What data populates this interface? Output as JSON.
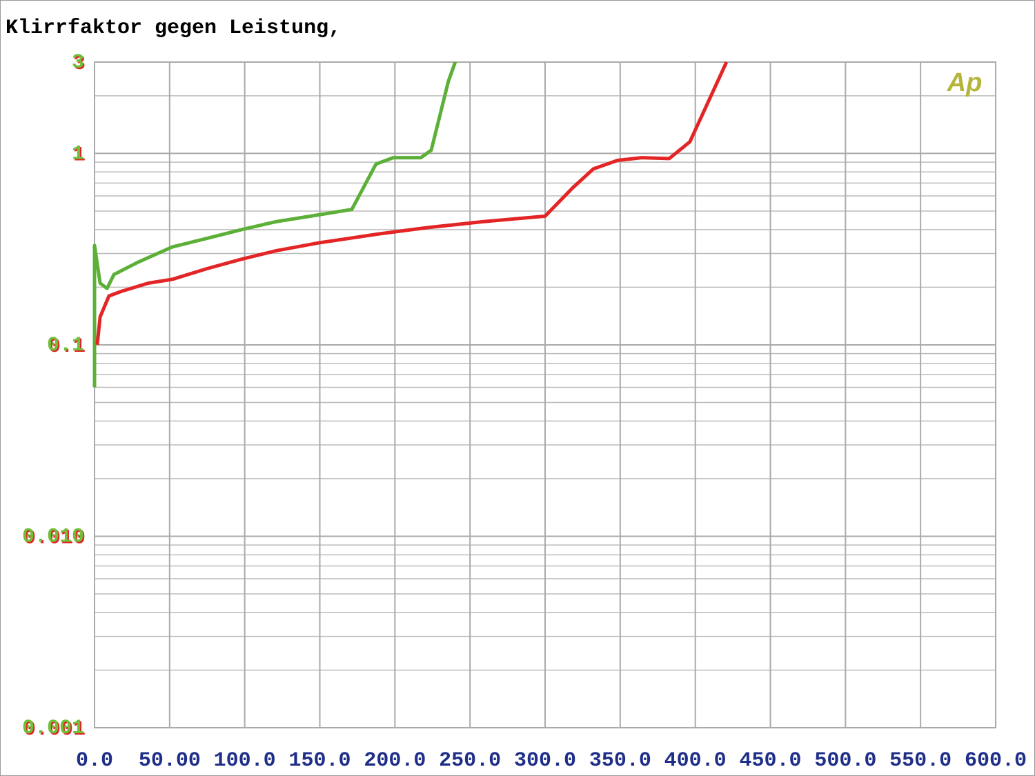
{
  "chart_data": {
    "type": "line",
    "title": "Klirrfaktor gegen Leistung,",
    "annotation": "Ap",
    "log_y": true,
    "grid": true,
    "xlim": [
      0,
      600
    ],
    "ylim": [
      0.001,
      3
    ],
    "xticks": [
      {
        "value": 0,
        "label": "0.0"
      },
      {
        "value": 50,
        "label": "50.00"
      },
      {
        "value": 100,
        "label": "100.0"
      },
      {
        "value": 150,
        "label": "150.0"
      },
      {
        "value": 200,
        "label": "200.0"
      },
      {
        "value": 250,
        "label": "250.0"
      },
      {
        "value": 300,
        "label": "300.0"
      },
      {
        "value": 350,
        "label": "350.0"
      },
      {
        "value": 400,
        "label": "400.0"
      },
      {
        "value": 450,
        "label": "450.0"
      },
      {
        "value": 500,
        "label": "500.0"
      },
      {
        "value": 550,
        "label": "550.0"
      },
      {
        "value": 600,
        "label": "600.0"
      }
    ],
    "yticks": [
      0.001,
      {
        "value": 0.01,
        "label": "0.010"
      },
      0.1,
      1,
      3
    ],
    "series": [
      {
        "color": "#5cb038",
        "x": [
          0,
          0,
          3.7,
          8.3,
          12.9,
          28.9,
          51.9,
          74.9,
          97.8,
          120.8,
          143.8,
          171.3,
          187.4,
          198.9,
          217.3,
          224.2,
          235.6,
          240.2
        ],
        "values": [
          0.06,
          0.33,
          0.21,
          0.197,
          0.233,
          0.27,
          0.325,
          0.36,
          0.4,
          0.44,
          0.47,
          0.51,
          0.88,
          0.95,
          0.95,
          1.04,
          2.38,
          3
        ]
      },
      {
        "color": "#e32526",
        "x": [
          1.8,
          3.7,
          9.6,
          17.5,
          35.8,
          51.9,
          74.9,
          97.8,
          120.8,
          148.4,
          189.7,
          221.9,
          258.6,
          300,
          318.3,
          332.1,
          348.2,
          364.3,
          382.6,
          396.4,
          410.2,
          420.8
        ],
        "values": [
          0.1,
          0.14,
          0.18,
          0.19,
          0.21,
          0.22,
          0.25,
          0.28,
          0.31,
          0.34,
          0.38,
          0.41,
          0.44,
          0.47,
          0.66,
          0.83,
          0.92,
          0.95,
          0.94,
          1.15,
          1.98,
          3
        ]
      }
    ]
  }
}
